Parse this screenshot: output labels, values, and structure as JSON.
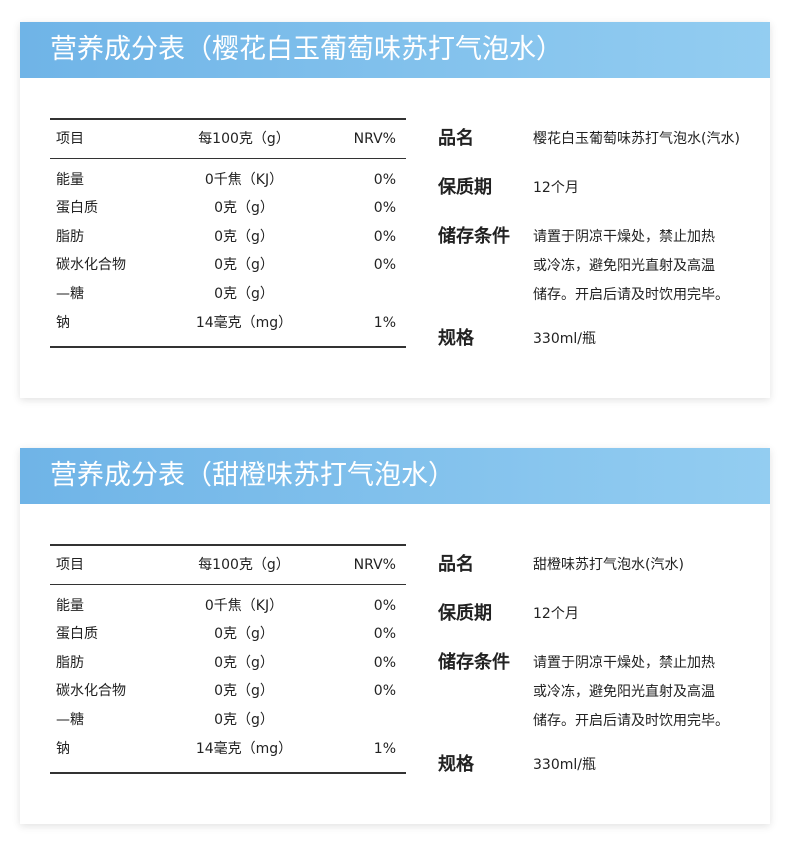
{
  "cards": [
    {
      "title": "营养成分表（樱花白玉葡萄味苏打气泡水）",
      "table": {
        "header": [
          "项目",
          "每100克（g）",
          "NRV%"
        ],
        "rows": [
          [
            "能量",
            "0千焦（KJ）",
            "0%"
          ],
          [
            "蛋白质",
            "0克（g）",
            "0%"
          ],
          [
            "脂肪",
            "0克（g）",
            "0%"
          ],
          [
            "碳水化合物",
            "0克（g）",
            "0%"
          ],
          [
            "—糖",
            "0克（g）"
          ],
          [
            "钠",
            "14毫克（mg）",
            "1%"
          ]
        ]
      },
      "info": [
        {
          "label": "品名",
          "lines": [
            "樱花白玉葡萄味苏打气泡水(汽水)"
          ]
        },
        {
          "label": "保质期",
          "lines": [
            "12个月"
          ]
        },
        {
          "label": "储存条件",
          "lines": [
            "请置于阴凉干燥处，禁止加热",
            "或冷冻，避免阳光直射及高温",
            "储存。开启后请及时饮用完毕。"
          ]
        },
        {
          "label": "规格",
          "lines": [
            "330ml/瓶"
          ]
        }
      ]
    },
    {
      "title": "营养成分表（甜橙味苏打气泡水）",
      "table": {
        "header": [
          "项目",
          "每100克（g）",
          "NRV%"
        ],
        "rows": [
          [
            "能量",
            "0千焦（KJ）",
            "0%"
          ],
          [
            "蛋白质",
            "0克（g）",
            "0%"
          ],
          [
            "脂肪",
            "0克（g）",
            "0%"
          ],
          [
            "碳水化合物",
            "0克（g）",
            "0%"
          ],
          [
            "—糖",
            "0克（g）"
          ],
          [
            "钠",
            "14毫克（mg）",
            "1%"
          ]
        ]
      },
      "info": [
        {
          "label": "品名",
          "lines": [
            "甜橙味苏打气泡水(汽水)"
          ]
        },
        {
          "label": "保质期",
          "lines": [
            "12个月"
          ]
        },
        {
          "label": "储存条件",
          "lines": [
            "请置于阴凉干燥处，禁止加热",
            "或冷冻，避免阳光直射及高温",
            "储存。开启后请及时饮用完毕。"
          ]
        },
        {
          "label": "规格",
          "lines": [
            "330ml/瓶"
          ]
        }
      ]
    }
  ]
}
